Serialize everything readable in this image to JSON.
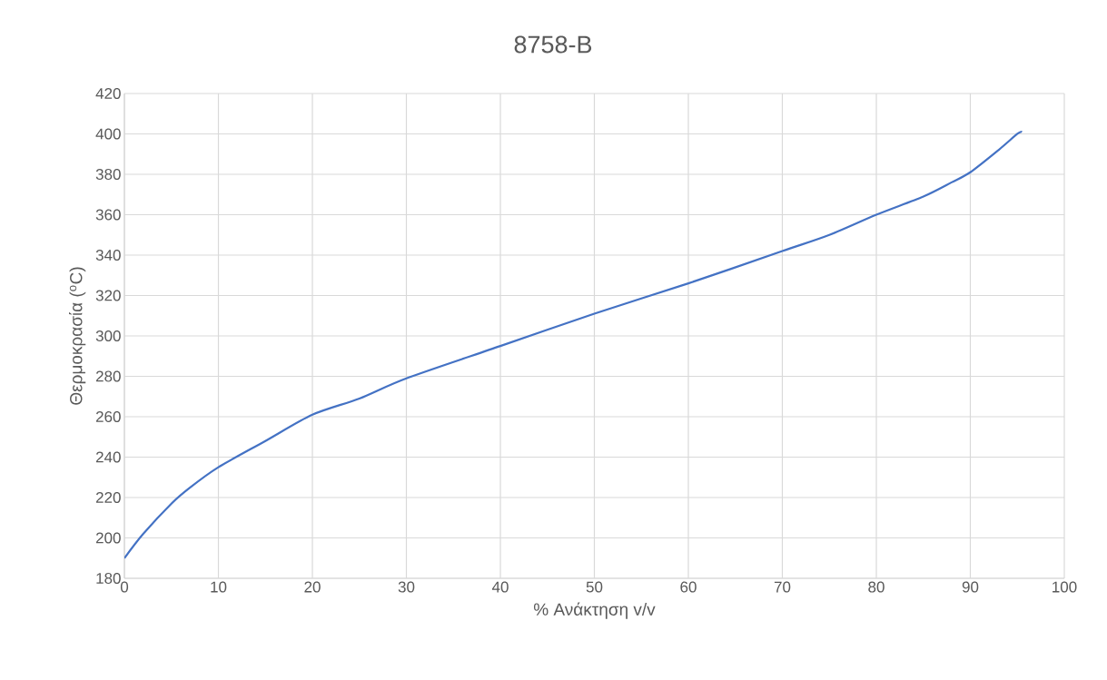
{
  "chart_data": {
    "type": "line",
    "title": "8758-B",
    "xlabel": "% Ανάκτηση v/v",
    "ylabel": "Θερμοκρασία ($^{o}$C)",
    "x": [
      0,
      2,
      5,
      7,
      10,
      15,
      20,
      25,
      30,
      40,
      50,
      60,
      70,
      75,
      80,
      85,
      88,
      90,
      93,
      95,
      95.5
    ],
    "series": [
      {
        "color": "#4472c4",
        "values": [
          190,
          202,
          217,
          225,
          235,
          248,
          261,
          269,
          279,
          295,
          311,
          326,
          342,
          350,
          360,
          369,
          376,
          381,
          392,
          400,
          401
        ]
      }
    ],
    "xlim": [
      0,
      100
    ],
    "ylim": [
      180,
      420
    ],
    "xticks": [
      0,
      10,
      20,
      30,
      40,
      50,
      60,
      70,
      80,
      90,
      100
    ],
    "yticks": [
      180,
      200,
      220,
      240,
      260,
      280,
      300,
      320,
      340,
      360,
      380,
      400,
      420
    ],
    "grid": true,
    "marker": "none",
    "line_style": "solid"
  }
}
